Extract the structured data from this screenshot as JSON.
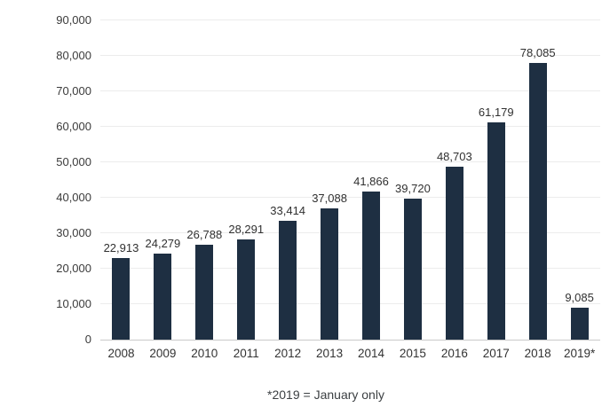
{
  "chart_data": {
    "type": "bar",
    "categories": [
      "2008",
      "2009",
      "2010",
      "2011",
      "2012",
      "2013",
      "2014",
      "2015",
      "2016",
      "2017",
      "2018",
      "2019*"
    ],
    "values": [
      22913,
      24279,
      26788,
      28291,
      33414,
      37088,
      41866,
      39720,
      48703,
      61179,
      78085,
      9085
    ],
    "value_labels": [
      "22,913",
      "24,279",
      "26,788",
      "28,291",
      "33,414",
      "37,088",
      "41,866",
      "39,720",
      "48,703",
      "61,179",
      "78,085",
      "9,085"
    ],
    "title": "",
    "xlabel": "",
    "ylabel": "",
    "ylim": [
      0,
      90000
    ],
    "ytick_step": 10000,
    "yticks": [
      "0",
      "10,000",
      "20,000",
      "30,000",
      "40,000",
      "50,000",
      "60,000",
      "70,000",
      "80,000",
      "90,000"
    ],
    "grid": true,
    "legend": "none",
    "bar_color": "#1e2f42",
    "footnote": "*2019 = January only"
  }
}
